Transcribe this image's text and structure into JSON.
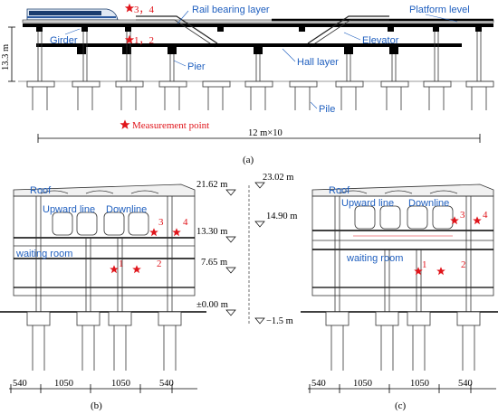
{
  "panel_a": {
    "labels": {
      "rail_bearing_layer": "Rail bearing layer",
      "platform_level": "Platform level",
      "elevator": "Elevator",
      "girder": "Girder",
      "pier": "Pier",
      "hall_layer": "Hall layer",
      "pile": "Pile",
      "height": "13.3 m",
      "span": "12 m×10",
      "legend": "Measurement point",
      "point_upper": "3，4",
      "point_lower": "1，2"
    },
    "caption": "(a)"
  },
  "panel_b": {
    "labels": {
      "roof": "Roof",
      "upward_line": "Upward line",
      "downline": "Downline",
      "waiting_room": "waiting room",
      "p1": "1",
      "p2": "2",
      "p3": "3",
      "p4": "4"
    },
    "dims": [
      "540",
      "1050",
      "1050",
      "540"
    ],
    "caption": "(b)"
  },
  "panel_c": {
    "labels": {
      "roof": "Roof",
      "upward_line": "Upward line",
      "downline": "Downline",
      "waiting_room": "waiting room",
      "p1": "1",
      "p2": "2",
      "p3": "3",
      "p4": "4"
    },
    "dims": [
      "540",
      "1050",
      "1050",
      "540"
    ],
    "caption": "(c)"
  },
  "elevations": {
    "left": [
      "21.62 m",
      "13.30 m",
      "7.65 m",
      "±0.00 m"
    ],
    "right": [
      "23.02 m",
      "14.90 m",
      "−1.5 m"
    ]
  },
  "colors": {
    "label_blue": "#1f5fbf",
    "marker_red": "#e0151b"
  }
}
